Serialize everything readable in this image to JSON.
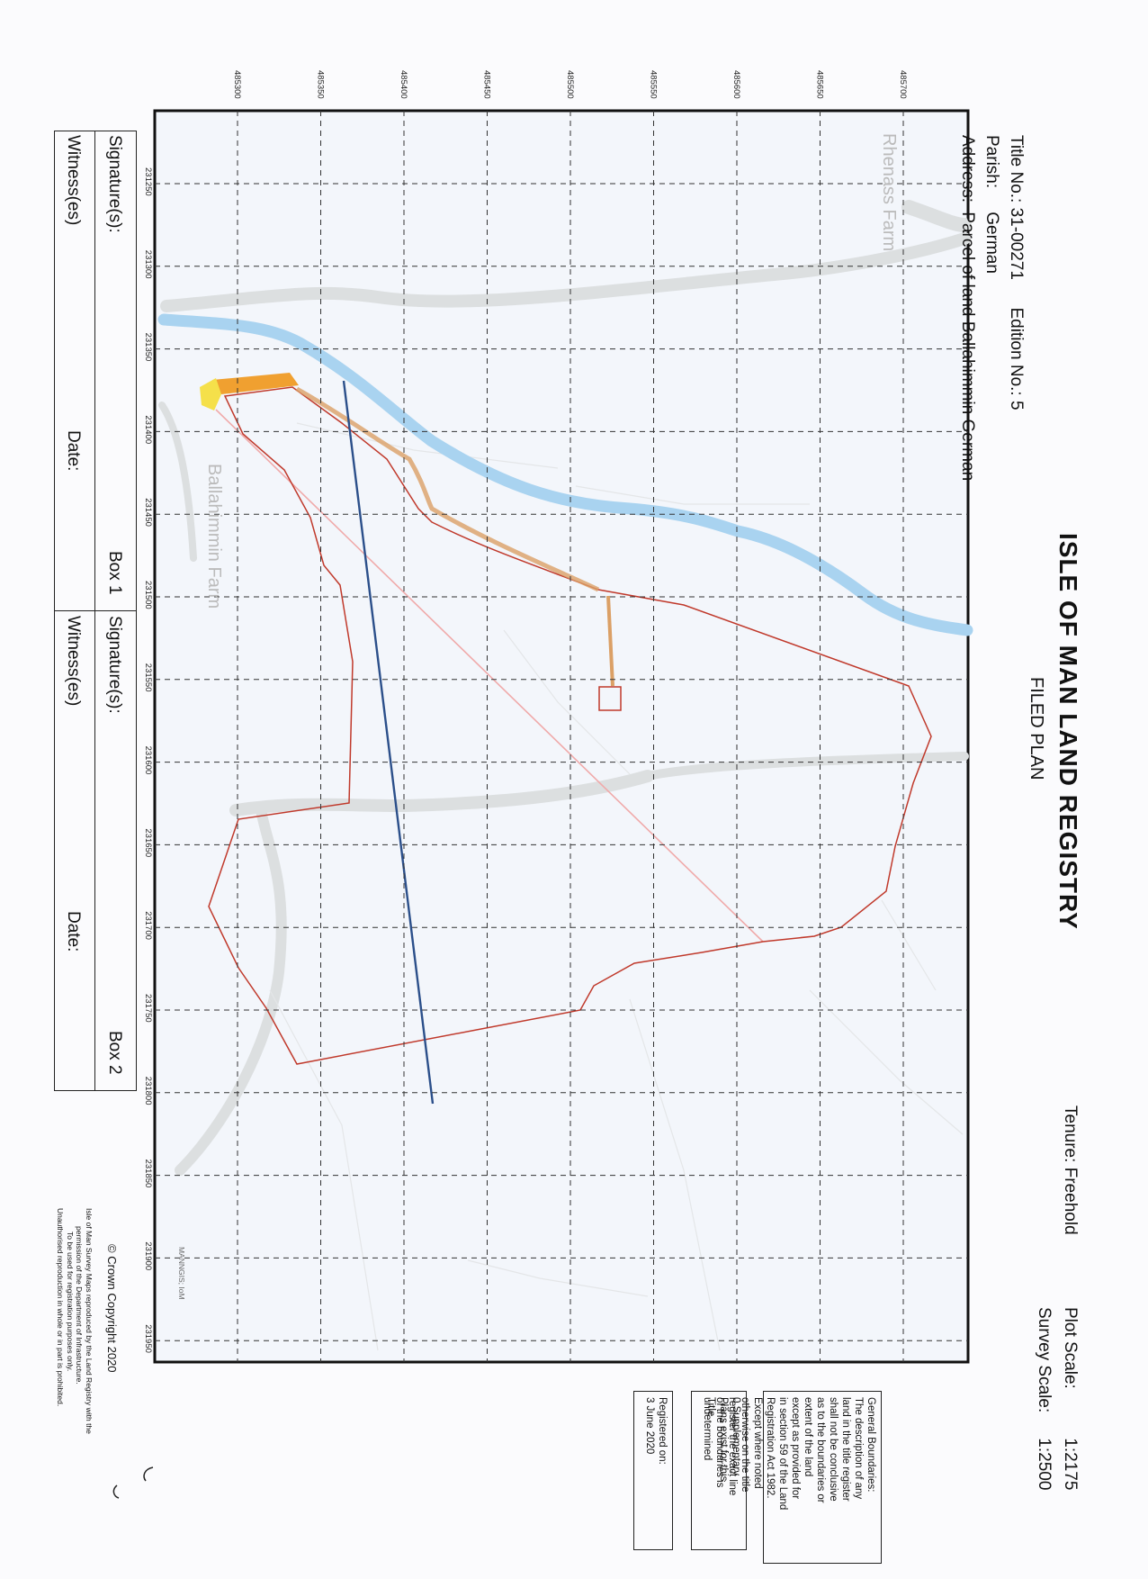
{
  "header": {
    "title_no_label": "Title No.:",
    "title_no": "31-00271",
    "edition_label": "Edition No.:",
    "edition_no": "5",
    "parish_label": "Parish:",
    "parish": "German",
    "address_label": "Address:",
    "address": "Parcel of land Ballahimmin German",
    "registry_title": "ISLE OF MAN LAND REGISTRY",
    "plan_type": "FILED PLAN",
    "tenure_label": "Tenure:",
    "tenure": "Freehold",
    "plot_scale_label": "Plot Scale:",
    "plot_scale": "1:2175",
    "survey_scale_label": "Survey Scale:",
    "survey_scale": "1:2500"
  },
  "map": {
    "place_labels": [
      "Rhenass Farm",
      "Ballahimmin Farm"
    ],
    "attribution": "MANNGIS; IoM",
    "northing_ticks": [
      "485300",
      "485350",
      "485400",
      "485450",
      "485500",
      "485550",
      "485600",
      "485650",
      "485700"
    ],
    "easting_ticks": [
      "231250",
      "231300",
      "231350",
      "231400",
      "231450",
      "231500",
      "231550",
      "231600",
      "231650",
      "231700",
      "231750",
      "231800",
      "231850",
      "231900",
      "231950"
    ],
    "colors": {
      "boundary": "#c0392b",
      "river": "#a9d3f0",
      "road": "#dcdfe0",
      "track": "#dba066",
      "highlight": "#f0a030",
      "marker": "#f5e04a",
      "line": "#2b4f8a",
      "faint_line": "#f0aaaa"
    }
  },
  "signatures": {
    "box1": {
      "label": "Box 1",
      "signature": "Signature(s):",
      "witness": "Witness(es)",
      "date": "Date:"
    },
    "box2": {
      "label": "Box 2",
      "signature": "Signature(s):",
      "witness": "Witness(es)",
      "date": "Date:"
    }
  },
  "notes": {
    "general_boundaries": [
      "General Boundaries:",
      "The description of any",
      "land in the title register",
      "shall not be conclusive",
      "as to the boundaries or",
      "extent of the land",
      "except as provided for",
      "in section 59 of the Land",
      "Registration Act 1982.",
      "Except where noted",
      "otherwise on the title",
      "register the exact line",
      "of the boundaries is",
      "undetermined"
    ],
    "supplementary": [
      "0 Supplementary",
      "Plans exist for this",
      "Title"
    ],
    "registered_label": "Registered on:",
    "registered_date": "3 June 2020"
  },
  "copyright": {
    "line1": "© Crown Copyright 2020",
    "line2": "Isle of Man Survey Maps reproduced by the Land Registry with the",
    "line3": "permission of the Department of Infrastructure.",
    "line4": "To be used for registration purposes only.",
    "line5": "Unauthorised reproduction in whole or in part is prohibited."
  }
}
